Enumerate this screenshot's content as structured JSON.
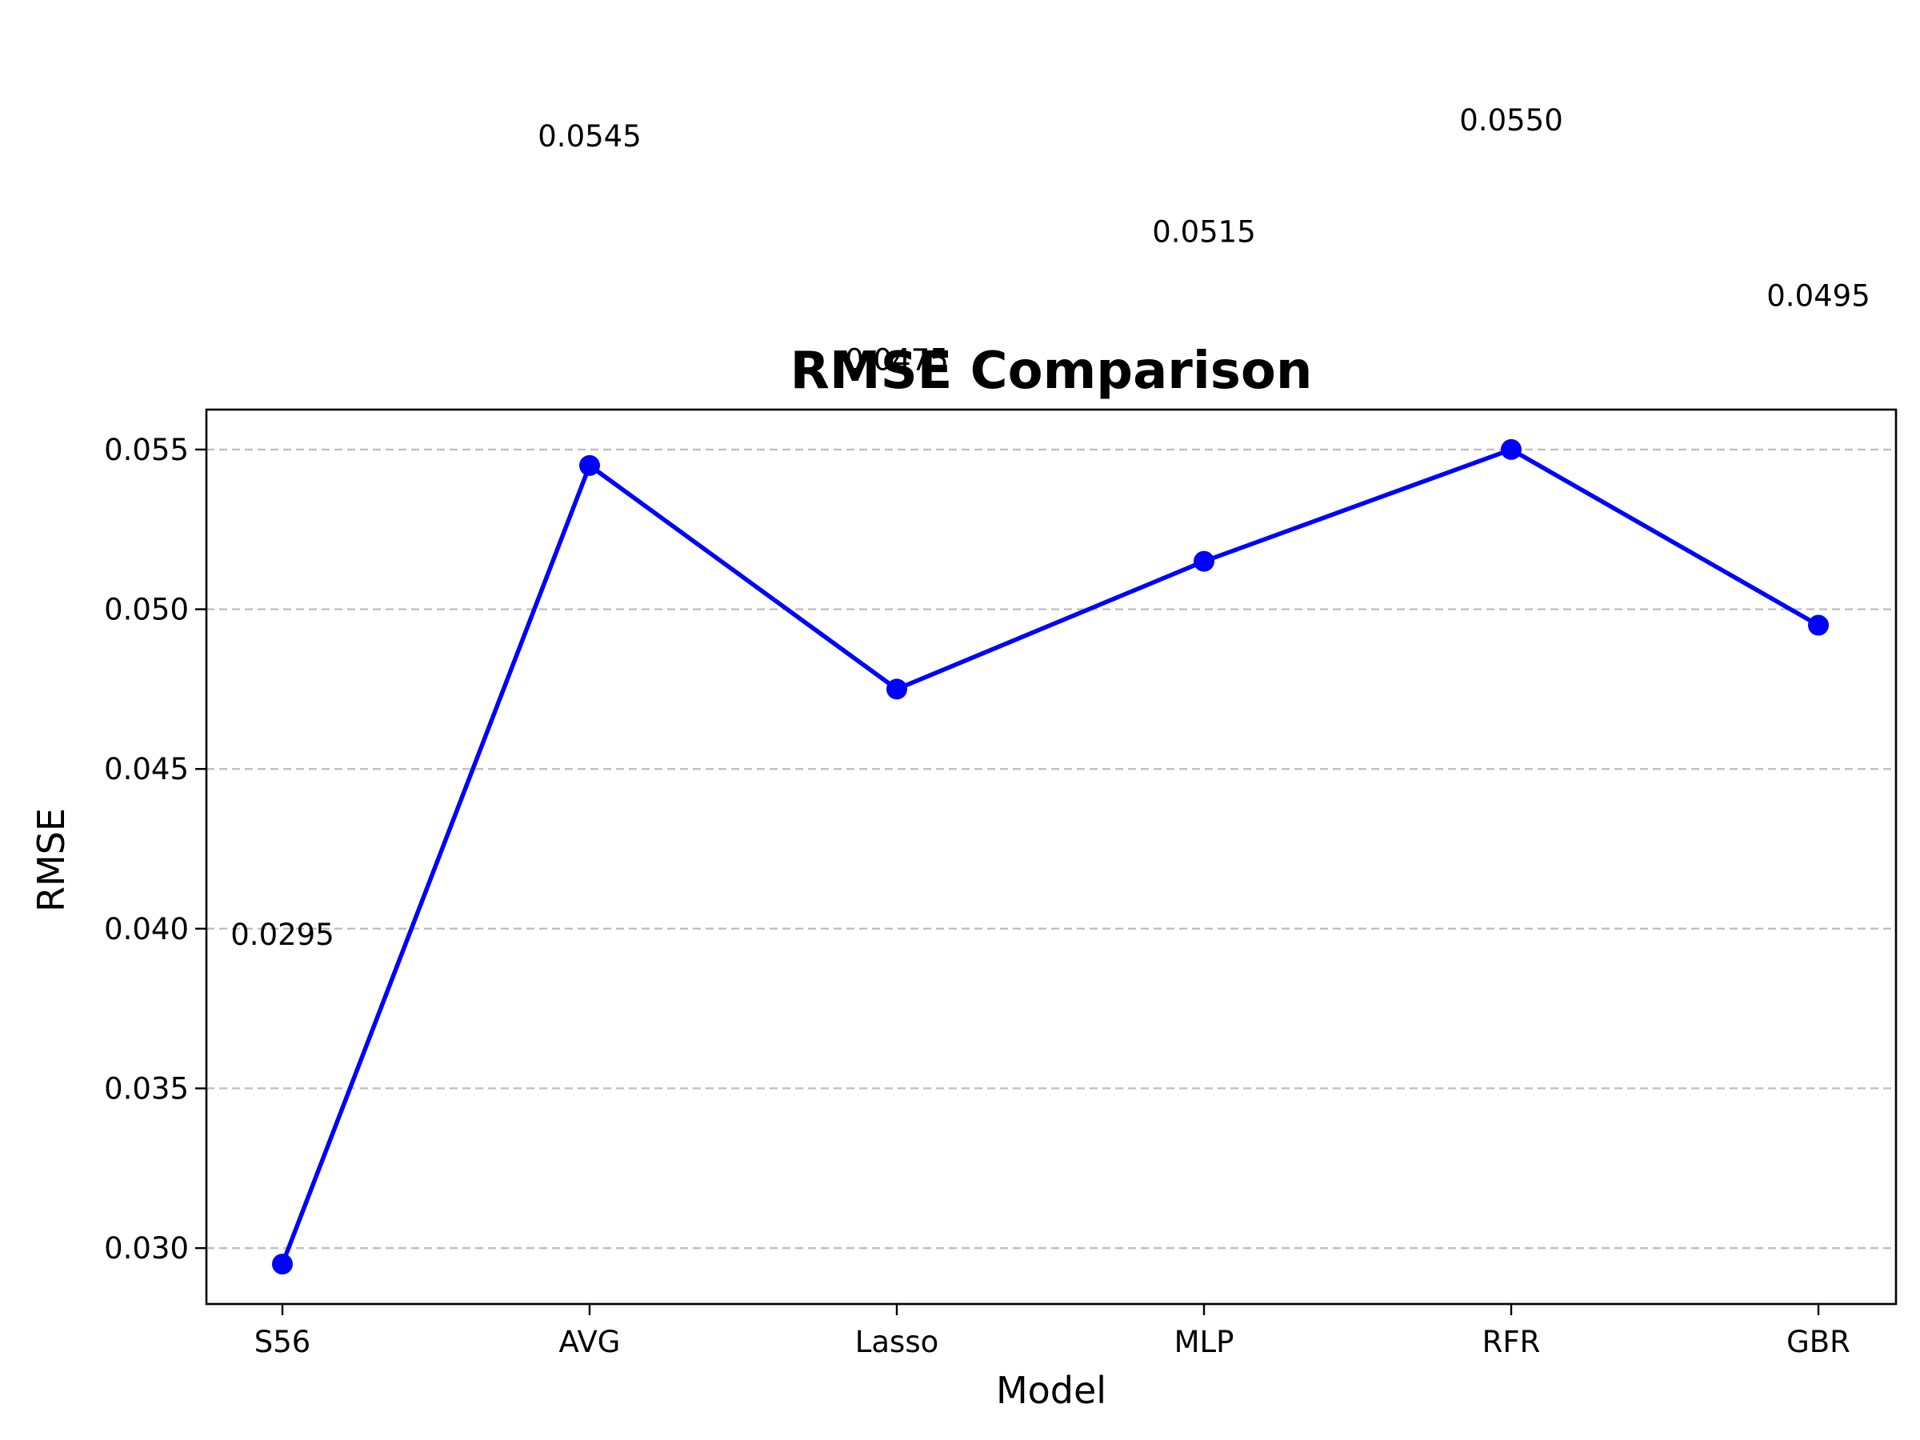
{
  "chart_data": {
    "type": "line",
    "title": "RMSE Comparison",
    "xlabel": "Model",
    "ylabel": "RMSE",
    "categories": [
      "S56",
      "AVG",
      "Lasso",
      "MLP",
      "RFR",
      "GBR"
    ],
    "series": [
      {
        "values": [
          0.0295,
          0.0545,
          0.0475,
          0.0515,
          0.055,
          0.0495
        ],
        "color": "#0000ff",
        "marker": "circle"
      }
    ],
    "data_labels": [
      "0.0295",
      "0.0545",
      "0.0475",
      "0.0515",
      "0.0550",
      "0.0495"
    ],
    "ylim": [
      0.02825,
      0.05625
    ],
    "yticks": [
      0.03,
      0.035,
      0.04,
      0.045,
      0.05,
      0.055
    ],
    "ytick_labels": [
      "0.030",
      "0.035",
      "0.040",
      "0.045",
      "0.050",
      "0.055"
    ],
    "grid": "y-dashed",
    "legend": "none"
  }
}
